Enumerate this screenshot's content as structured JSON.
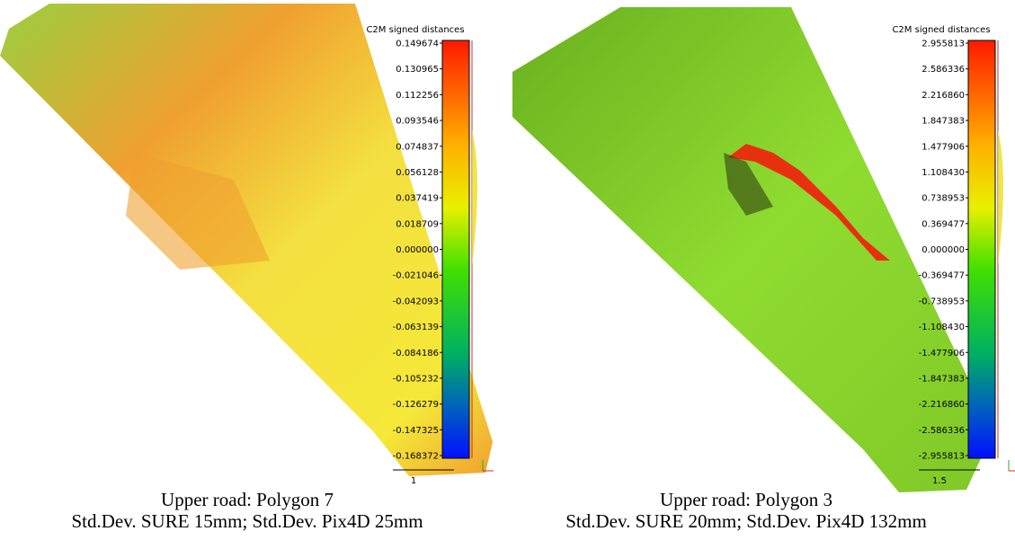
{
  "panels": [
    {
      "colorbar_title": "C2M signed distances",
      "ticks": [
        "0.149674",
        "0.130965",
        "0.112256",
        "0.093546",
        "0.074837",
        "0.056128",
        "0.037419",
        "0.018709",
        "0.000000",
        "-0.021046",
        "-0.042093",
        "-0.063139",
        "-0.084186",
        "-0.105232",
        "-0.126279",
        "-0.147325",
        "-0.168372"
      ],
      "scale_label": "1",
      "caption": [
        "Upper road: Polygon 7",
        "Std.Dev. SURE 15mm; Std.Dev. Pix4D 25mm"
      ]
    },
    {
      "colorbar_title": "C2M signed distances",
      "ticks": [
        "2.955813",
        "2.586336",
        "2.216860",
        "1.847383",
        "1.477906",
        "1.108430",
        "0.738953",
        "0.369477",
        "0.000000",
        "-0.369477",
        "-0.738953",
        "-1.108430",
        "-1.477906",
        "-1.847383",
        "-2.216860",
        "-2.586336",
        "-2.955813"
      ],
      "scale_label": "1.5",
      "caption": [
        "Upper road: Polygon 3",
        "Std.Dev. SURE 20mm; Std.Dev. Pix4D 132mm"
      ]
    }
  ]
}
